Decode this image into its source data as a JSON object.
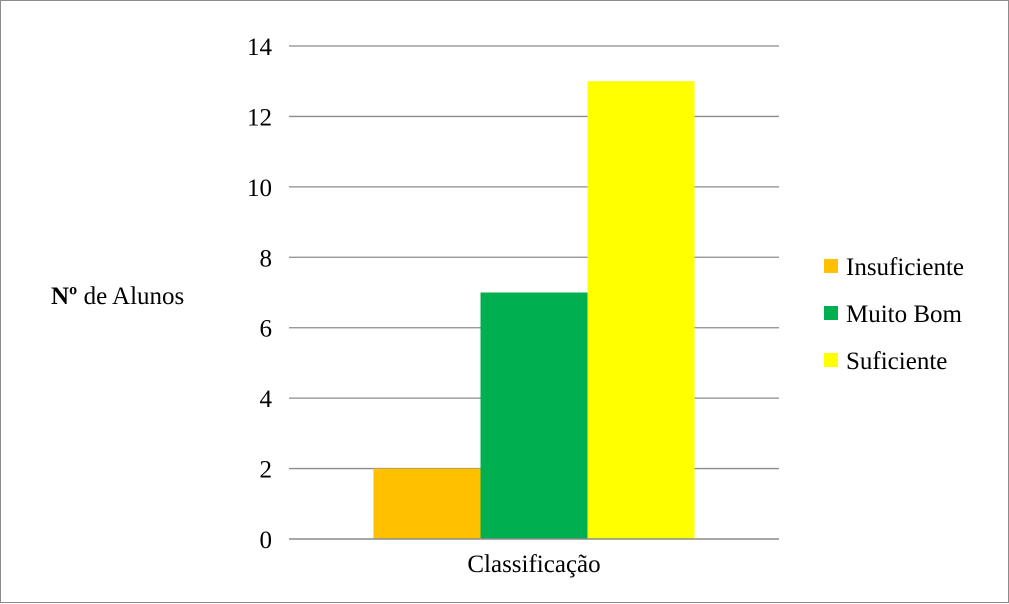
{
  "chart_data": {
    "type": "bar",
    "categories": [
      "Classificação"
    ],
    "series": [
      {
        "name": "Insuficiente",
        "values": [
          2
        ],
        "color": "#FFC000"
      },
      {
        "name": "Muito Bom",
        "values": [
          7
        ],
        "color": "#00B050"
      },
      {
        "name": "Suficiente",
        "values": [
          13
        ],
        "color": "#FFFF00"
      }
    ],
    "title": "",
    "xlabel": "",
    "ylabel_bold": "Nº",
    "ylabel_rest": " de Alunos",
    "ylim": [
      0,
      14
    ],
    "yticks": [
      "0",
      "2",
      "4",
      "6",
      "8",
      "10",
      "12",
      "14"
    ],
    "grid": true,
    "legend_position": "right"
  }
}
